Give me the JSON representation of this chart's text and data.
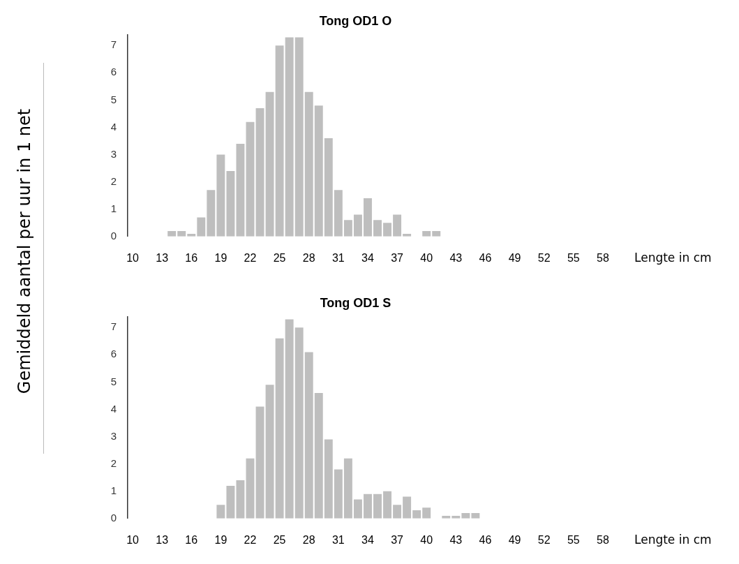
{
  "chart_data": [
    {
      "type": "bar",
      "title": "Tong OD1 O",
      "xlabel": "Lengte in cm",
      "ylabel": "Gemiddeld aantal per uur in 1 net",
      "categories": [
        "10",
        null,
        null,
        "13",
        null,
        null,
        "16",
        null,
        null,
        "19",
        null,
        null,
        "22",
        null,
        null,
        "25",
        null,
        null,
        "28",
        null,
        null,
        "31",
        null,
        null,
        "34",
        null,
        null,
        "37",
        null,
        null,
        "40",
        null,
        null,
        "43",
        null,
        null,
        "46",
        null,
        null,
        "49",
        null,
        null,
        "52",
        null,
        null,
        "55",
        null,
        null,
        "58",
        null,
        null
      ],
      "values": [
        0,
        0,
        0,
        0,
        0.2,
        0.2,
        0.1,
        0.7,
        1.7,
        3.0,
        2.4,
        3.4,
        4.2,
        4.7,
        5.3,
        7.0,
        7.3,
        7.3,
        5.3,
        4.8,
        3.6,
        1.7,
        0.6,
        0.8,
        1.4,
        0.6,
        0.5,
        0.8,
        0.1,
        0,
        0.2,
        0.2,
        0,
        0,
        0,
        0,
        0,
        0,
        0,
        0,
        0,
        0,
        0,
        0,
        0,
        0,
        0,
        0,
        0,
        0,
        0
      ],
      "color": "#bebebe",
      "ylim": [
        0,
        7.4
      ],
      "yticks": [
        0,
        1,
        2,
        3,
        4,
        5,
        6,
        7
      ],
      "grid": false
    },
    {
      "type": "bar",
      "title": "Tong OD1 S",
      "xlabel": "Lengte in cm",
      "categories": [
        "10",
        null,
        null,
        "13",
        null,
        null,
        "16",
        null,
        null,
        "19",
        null,
        null,
        "22",
        null,
        null,
        "25",
        null,
        null,
        "28",
        null,
        null,
        "31",
        null,
        null,
        "34",
        null,
        null,
        "37",
        null,
        null,
        "40",
        null,
        null,
        "43",
        null,
        null,
        "46",
        null,
        null,
        "49",
        null,
        null,
        "52",
        null,
        null,
        "55",
        null,
        null,
        "58",
        null,
        null
      ],
      "values": [
        0,
        0,
        0,
        0,
        0,
        0,
        0,
        0,
        0,
        0.5,
        1.2,
        1.4,
        2.2,
        4.1,
        4.9,
        6.6,
        7.3,
        7.0,
        6.1,
        4.6,
        2.9,
        1.8,
        2.2,
        0.7,
        0.9,
        0.9,
        1.0,
        0.5,
        0.8,
        0.3,
        0.4,
        0,
        0.1,
        0.1,
        0.2,
        0.2,
        0,
        0,
        0,
        0,
        0,
        0,
        0,
        0,
        0,
        0,
        0,
        0,
        0,
        0,
        0
      ],
      "color": "#bebebe",
      "ylim": [
        0,
        7.4
      ],
      "yticks": [
        0,
        1,
        2,
        3,
        4,
        5,
        6,
        7
      ],
      "grid": false
    }
  ]
}
